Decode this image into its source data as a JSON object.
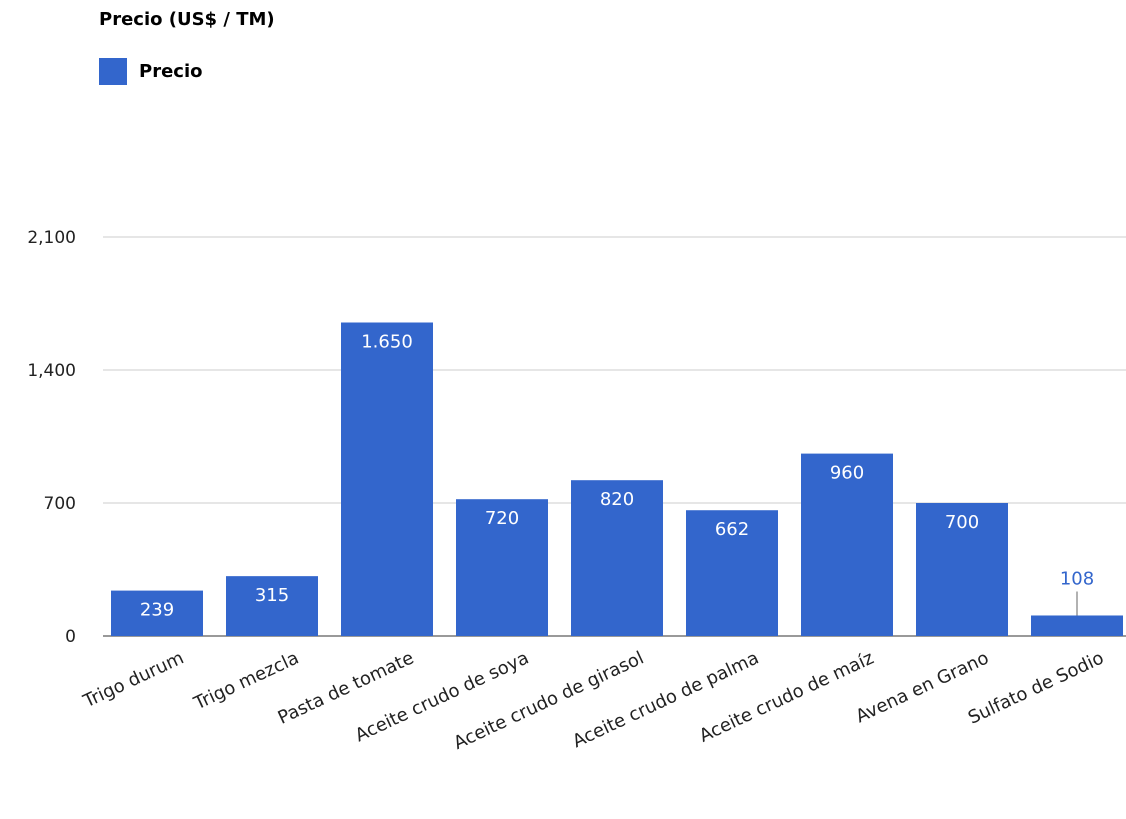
{
  "chart_data": {
    "type": "bar",
    "title": "Precio (US$ / TM)",
    "xlabel": "",
    "ylabel": "",
    "ylim": [
      0,
      2100
    ],
    "yticks": [
      0,
      700,
      1400,
      2100
    ],
    "ytick_labels": [
      "0",
      "700",
      "1,400",
      "2,100"
    ],
    "grid": true,
    "legend_position": "top-left",
    "categories": [
      "Trigo durum",
      "Trigo mezcla",
      "Pasta de tomate",
      "Aceite crudo de soya",
      "Aceite crudo de girasol",
      "Aceite crudo de palma",
      "Aceite crudo de maíz",
      "Avena en Grano",
      "Sulfato de Sodio"
    ],
    "series": [
      {
        "name": "Precio",
        "color": "#3366cc",
        "values": [
          239,
          315,
          1650,
          720,
          820,
          662,
          960,
          700,
          108
        ],
        "labels": [
          "239",
          "315",
          "1.650",
          "720",
          "820",
          "662",
          "960",
          "700",
          "108"
        ]
      }
    ]
  }
}
